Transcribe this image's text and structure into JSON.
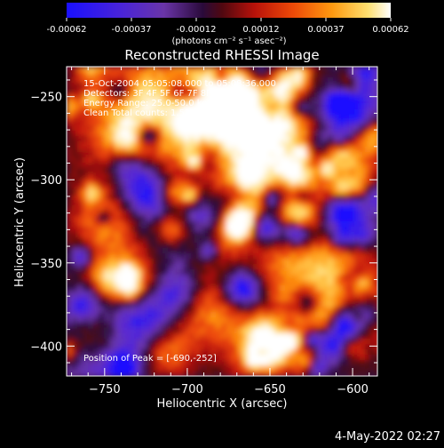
{
  "colors": {
    "background": "#000000",
    "foreground": "#ffffff",
    "scale": [
      "#1a10ff",
      "#5b2bd0",
      "#6a35a8",
      "#2a0a3a",
      "#7a0a12",
      "#c41a0a",
      "#ee4a08",
      "#ff9a10",
      "#ffe070",
      "#ffffff"
    ]
  },
  "colorbar": {
    "ticks": [
      "-0.00062",
      "-0.00037",
      "-0.00012",
      "0.00012",
      "0.00037",
      "0.00062"
    ],
    "unit_label": "(photons cm⁻² s⁻¹ asec⁻²)"
  },
  "annotations": {
    "time": "15-Oct-2004 05:05:08.000 to 05:08:36.000",
    "detectors": "Detectors: 3F 4F 5F 6F 7F 8F, Att 0",
    "energy": "Energy Range: 25.0-50.0 keV",
    "clean": "Clean    Total counts: 1.52E+03",
    "peak": "Position of Peak = [-690,-252]"
  },
  "footer": {
    "date": "4-May-2022 02:27"
  },
  "chart_data": {
    "type": "heatmap",
    "title": "Reconstructed RHESSI Image",
    "xlabel": "Heliocentric X (arcsec)",
    "ylabel": "Heliocentric Y (arcsec)",
    "xlim": [
      -773,
      -585
    ],
    "ylim": [
      -418,
      -232
    ],
    "xticks": [
      -750,
      -700,
      -650,
      -600
    ],
    "yticks": [
      -250,
      -300,
      -350,
      -400
    ],
    "colorbar_range": [
      -0.00062,
      0.00062
    ],
    "peak_position": [
      -690,
      -252
    ],
    "grid": false
  }
}
